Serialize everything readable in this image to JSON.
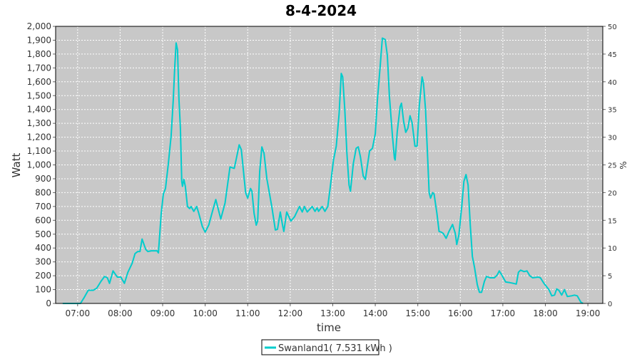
{
  "chart_data": {
    "type": "line",
    "title": "8-4-2024",
    "xlabel": "time",
    "ylabel": "Watt",
    "y2label": "%",
    "xlim": [
      "06:29",
      "19:21"
    ],
    "ylim": [
      0,
      2000
    ],
    "y2lim": [
      0,
      50
    ],
    "xticks": [
      "07:00",
      "08:00",
      "09:00",
      "10:00",
      "11:00",
      "12:00",
      "13:00",
      "14:00",
      "15:00",
      "16:00",
      "17:00",
      "18:00",
      "19:00"
    ],
    "yticks": [
      "0",
      "100",
      "200",
      "300",
      "400",
      "500",
      "600",
      "700",
      "800",
      "900",
      "1,000",
      "1,100",
      "1,200",
      "1,300",
      "1,400",
      "1,500",
      "1,600",
      "1,700",
      "1,800",
      "1,900",
      "2,000"
    ],
    "y2ticks": [
      "0",
      "5",
      "10",
      "15",
      "20",
      "25",
      "30",
      "35",
      "40",
      "45",
      "50"
    ],
    "grid": true,
    "background": "#c8c8c8",
    "legend_placement": "bottom",
    "series": [
      {
        "name": "Swanland1( 7.531 kWh )",
        "color": "#00cccc",
        "points": [
          [
            "06:39",
            0
          ],
          [
            "07:04",
            0
          ],
          [
            "07:09",
            40
          ],
          [
            "07:15",
            95
          ],
          [
            "07:22",
            95
          ],
          [
            "07:27",
            110
          ],
          [
            "07:33",
            160
          ],
          [
            "07:38",
            195
          ],
          [
            "07:42",
            185
          ],
          [
            "07:45",
            145
          ],
          [
            "07:50",
            235
          ],
          [
            "07:56",
            190
          ],
          [
            "08:01",
            190
          ],
          [
            "08:06",
            145
          ],
          [
            "08:11",
            225
          ],
          [
            "08:17",
            290
          ],
          [
            "08:21",
            360
          ],
          [
            "08:25",
            375
          ],
          [
            "08:28",
            375
          ],
          [
            "08:31",
            465
          ],
          [
            "08:36",
            390
          ],
          [
            "08:39",
            375
          ],
          [
            "08:44",
            380
          ],
          [
            "08:52",
            380
          ],
          [
            "08:54",
            365
          ],
          [
            "08:58",
            650
          ],
          [
            "09:01",
            790
          ],
          [
            "09:04",
            830
          ],
          [
            "09:08",
            1010
          ],
          [
            "09:12",
            1210
          ],
          [
            "09:15",
            1470
          ],
          [
            "09:17",
            1700
          ],
          [
            "09:19",
            1880
          ],
          [
            "09:21",
            1830
          ],
          [
            "09:23",
            1470
          ],
          [
            "09:25",
            1265
          ],
          [
            "09:27",
            880
          ],
          [
            "09:28",
            845
          ],
          [
            "09:30",
            895
          ],
          [
            "09:32",
            845
          ],
          [
            "09:35",
            700
          ],
          [
            "09:38",
            685
          ],
          [
            "09:40",
            700
          ],
          [
            "09:44",
            665
          ],
          [
            "09:48",
            700
          ],
          [
            "09:51",
            650
          ],
          [
            "09:56",
            555
          ],
          [
            "10:00",
            515
          ],
          [
            "10:05",
            565
          ],
          [
            "10:10",
            660
          ],
          [
            "10:15",
            750
          ],
          [
            "10:20",
            650
          ],
          [
            "10:22",
            610
          ],
          [
            "10:28",
            725
          ],
          [
            "10:35",
            985
          ],
          [
            "10:41",
            975
          ],
          [
            "10:45",
            1070
          ],
          [
            "10:48",
            1145
          ],
          [
            "10:51",
            1110
          ],
          [
            "10:54",
            955
          ],
          [
            "10:57",
            800
          ],
          [
            "11:00",
            760
          ],
          [
            "11:04",
            830
          ],
          [
            "11:06",
            810
          ],
          [
            "11:09",
            650
          ],
          [
            "11:12",
            565
          ],
          [
            "11:14",
            595
          ],
          [
            "11:17",
            955
          ],
          [
            "11:20",
            1130
          ],
          [
            "11:23",
            1085
          ],
          [
            "11:27",
            900
          ],
          [
            "11:34",
            700
          ],
          [
            "11:39",
            530
          ],
          [
            "11:42",
            535
          ],
          [
            "11:46",
            660
          ],
          [
            "11:49",
            570
          ],
          [
            "11:51",
            520
          ],
          [
            "11:55",
            660
          ],
          [
            "12:01",
            595
          ],
          [
            "12:06",
            625
          ],
          [
            "12:13",
            700
          ],
          [
            "12:17",
            660
          ],
          [
            "12:20",
            700
          ],
          [
            "12:24",
            660
          ],
          [
            "12:31",
            700
          ],
          [
            "12:35",
            665
          ],
          [
            "12:38",
            690
          ],
          [
            "12:40",
            665
          ],
          [
            "12:45",
            700
          ],
          [
            "12:49",
            665
          ],
          [
            "12:53",
            700
          ],
          [
            "12:56",
            820
          ],
          [
            "13:01",
            1035
          ],
          [
            "13:05",
            1135
          ],
          [
            "13:09",
            1370
          ],
          [
            "13:12",
            1660
          ],
          [
            "13:14",
            1635
          ],
          [
            "13:17",
            1395
          ],
          [
            "13:20",
            1085
          ],
          [
            "13:23",
            855
          ],
          [
            "13:25",
            810
          ],
          [
            "13:29",
            1010
          ],
          [
            "13:33",
            1120
          ],
          [
            "13:36",
            1130
          ],
          [
            "13:39",
            1060
          ],
          [
            "13:43",
            920
          ],
          [
            "13:46",
            895
          ],
          [
            "13:49",
            1000
          ],
          [
            "13:52",
            1100
          ],
          [
            "13:56",
            1120
          ],
          [
            "14:00",
            1225
          ],
          [
            "14:03",
            1470
          ],
          [
            "14:07",
            1715
          ],
          [
            "14:10",
            1915
          ],
          [
            "14:14",
            1905
          ],
          [
            "14:17",
            1790
          ],
          [
            "14:20",
            1495
          ],
          [
            "14:24",
            1225
          ],
          [
            "14:27",
            1050
          ],
          [
            "14:28",
            1035
          ],
          [
            "14:31",
            1240
          ],
          [
            "14:35",
            1420
          ],
          [
            "14:37",
            1445
          ],
          [
            "14:40",
            1315
          ],
          [
            "14:43",
            1235
          ],
          [
            "14:46",
            1265
          ],
          [
            "14:49",
            1355
          ],
          [
            "14:52",
            1305
          ],
          [
            "14:56",
            1135
          ],
          [
            "14:59",
            1135
          ],
          [
            "15:02",
            1420
          ],
          [
            "15:06",
            1635
          ],
          [
            "15:08",
            1595
          ],
          [
            "15:11",
            1395
          ],
          [
            "15:13",
            1160
          ],
          [
            "15:16",
            800
          ],
          [
            "15:18",
            760
          ],
          [
            "15:21",
            800
          ],
          [
            "15:23",
            790
          ],
          [
            "15:27",
            650
          ],
          [
            "15:30",
            520
          ],
          [
            "15:33",
            515
          ],
          [
            "15:36",
            505
          ],
          [
            "15:40",
            470
          ],
          [
            "15:44",
            520
          ],
          [
            "15:49",
            570
          ],
          [
            "15:53",
            505
          ],
          [
            "15:55",
            425
          ],
          [
            "15:58",
            495
          ],
          [
            "16:02",
            700
          ],
          [
            "16:05",
            880
          ],
          [
            "16:08",
            930
          ],
          [
            "16:11",
            855
          ],
          [
            "16:14",
            570
          ],
          [
            "16:17",
            340
          ],
          [
            "16:20",
            260
          ],
          [
            "16:24",
            135
          ],
          [
            "16:27",
            80
          ],
          [
            "16:30",
            80
          ],
          [
            "16:34",
            160
          ],
          [
            "16:37",
            195
          ],
          [
            "16:42",
            185
          ],
          [
            "16:48",
            185
          ],
          [
            "16:52",
            205
          ],
          [
            "16:55",
            235
          ],
          [
            "16:58",
            210
          ],
          [
            "17:04",
            155
          ],
          [
            "17:10",
            150
          ],
          [
            "17:15",
            145
          ],
          [
            "17:19",
            140
          ],
          [
            "17:22",
            225
          ],
          [
            "17:25",
            240
          ],
          [
            "17:30",
            230
          ],
          [
            "17:34",
            235
          ],
          [
            "17:38",
            200
          ],
          [
            "17:42",
            185
          ],
          [
            "17:50",
            190
          ],
          [
            "17:53",
            185
          ],
          [
            "17:58",
            145
          ],
          [
            "18:05",
            100
          ],
          [
            "18:09",
            55
          ],
          [
            "18:13",
            60
          ],
          [
            "18:16",
            105
          ],
          [
            "18:19",
            95
          ],
          [
            "18:23",
            60
          ],
          [
            "18:27",
            100
          ],
          [
            "18:31",
            50
          ],
          [
            "18:37",
            55
          ],
          [
            "18:41",
            60
          ],
          [
            "18:45",
            55
          ],
          [
            "18:50",
            10
          ],
          [
            "18:53",
            0
          ]
        ]
      }
    ]
  }
}
